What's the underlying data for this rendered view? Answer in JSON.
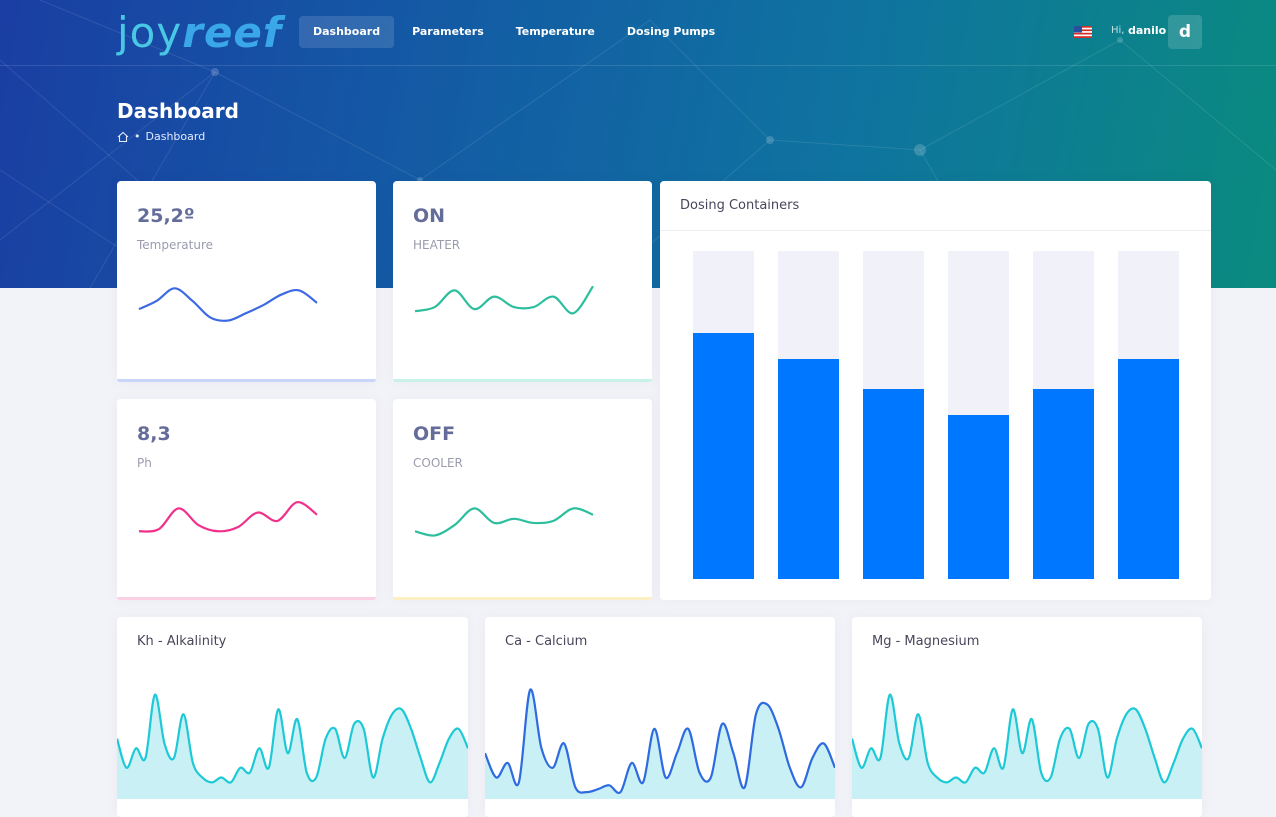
{
  "brand": {
    "logo_joy": "joy",
    "logo_reef": "reef"
  },
  "nav": {
    "items": [
      {
        "label": "Dashboard",
        "active": true
      },
      {
        "label": "Parameters",
        "active": false
      },
      {
        "label": "Temperature",
        "active": false
      },
      {
        "label": "Dosing Pumps",
        "active": false
      }
    ]
  },
  "user": {
    "greeting": "Hi,",
    "name": "danilo",
    "initial": "d",
    "language_flag": "us-flag-icon"
  },
  "page": {
    "title": "Dashboard",
    "breadcrumb": "Dashboard",
    "breadcrumb_separator": "•"
  },
  "stats": [
    {
      "value": "25,2º",
      "label": "Temperature",
      "color": "#3d6ae3",
      "bottom": "#c9d6fb",
      "chart_data": {
        "type": "line",
        "values": [
          22,
          30,
          42,
          30,
          14,
          11,
          18,
          26,
          36,
          40,
          28
        ]
      }
    },
    {
      "value": "ON",
      "label": "HEATER",
      "color": "#2dbf9d",
      "bottom": "#c8f1ea",
      "chart_data": {
        "type": "line",
        "values": [
          20,
          24,
          40,
          22,
          34,
          24,
          24,
          34,
          18,
          44
        ]
      }
    },
    {
      "value": "8,3",
      "label": "Ph",
      "color": "#f0308a",
      "bottom": "#fcd0e4",
      "chart_data": {
        "type": "line",
        "values": [
          18,
          20,
          40,
          24,
          18,
          22,
          36,
          28,
          46,
          34
        ]
      }
    },
    {
      "value": "OFF",
      "label": "COOLER",
      "color": "#2dbf9d",
      "bottom": "#fdefc4",
      "chart_data": {
        "type": "line",
        "values": [
          18,
          14,
          24,
          40,
          26,
          30,
          26,
          28,
          40,
          34
        ]
      }
    }
  ],
  "dosing": {
    "title": "Dosing Containers",
    "bar_color": "#0077ff",
    "track_color": "#f1f2f9",
    "chart_data": {
      "type": "bar",
      "values": [
        75,
        67,
        58,
        50,
        58,
        67
      ],
      "ylim": [
        0,
        100
      ]
    }
  },
  "minerals": [
    {
      "title": "Kh - Alkalinity",
      "line": "#1dc9d6",
      "fill": "#c9f1f5",
      "chart_data": {
        "type": "area",
        "values": [
          60,
          30,
          50,
          40,
          105,
          55,
          40,
          85,
          35,
          20,
          15,
          20,
          15,
          30,
          25,
          50,
          30,
          90,
          45,
          80,
          25,
          20,
          60,
          70,
          40,
          75,
          70,
          20,
          60,
          85,
          90,
          70,
          40,
          15,
          35,
          60,
          70,
          50
        ]
      }
    },
    {
      "title": "Ca - Calcium",
      "line": "#2e6ae0",
      "fill": "#c9f1f5",
      "chart_data": {
        "type": "area",
        "values": [
          45,
          20,
          35,
          15,
          110,
          50,
          30,
          55,
          10,
          5,
          8,
          12,
          5,
          35,
          15,
          70,
          20,
          45,
          70,
          25,
          20,
          75,
          45,
          10,
          85,
          95,
          70,
          30,
          10,
          40,
          55,
          30
        ]
      }
    },
    {
      "title": "Mg - Magnesium",
      "line": "#1dc9d6",
      "fill": "#c9f1f5",
      "chart_data": {
        "type": "area",
        "values": [
          60,
          30,
          50,
          40,
          105,
          55,
          40,
          85,
          35,
          20,
          15,
          20,
          15,
          30,
          25,
          50,
          30,
          90,
          45,
          80,
          25,
          20,
          60,
          70,
          40,
          75,
          70,
          20,
          60,
          85,
          90,
          70,
          40,
          15,
          35,
          60,
          70,
          50
        ]
      }
    }
  ]
}
